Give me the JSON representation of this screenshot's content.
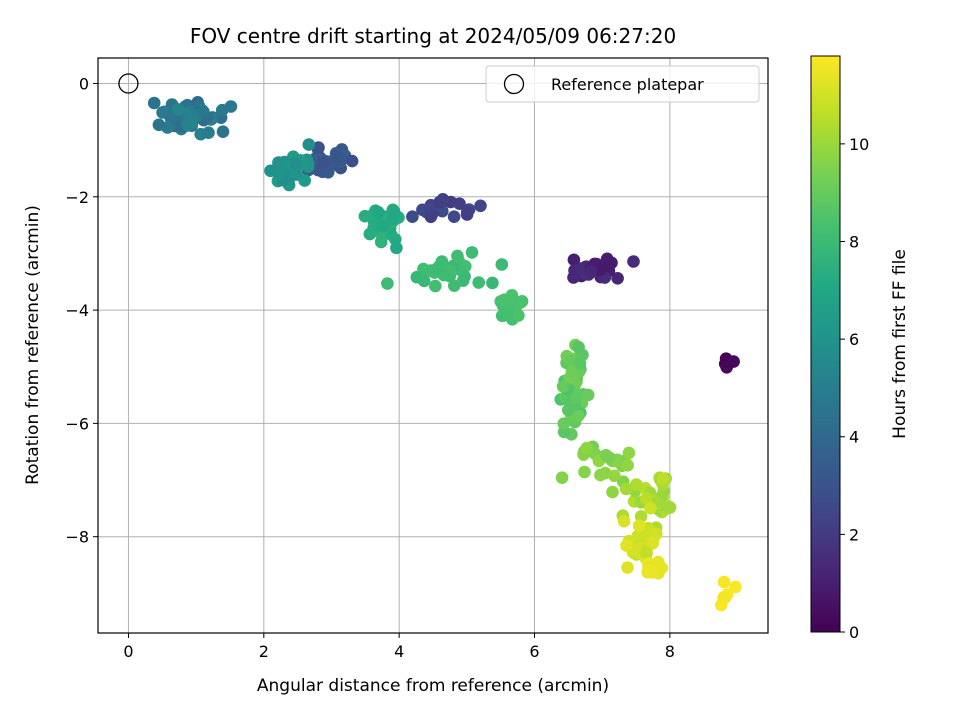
{
  "chart_data": {
    "type": "scatter",
    "title": "FOV centre drift starting at 2024/05/09 06:27:20",
    "xlabel": "Angular distance from reference (arcmin)",
    "ylabel": "Rotation from reference (arcmin)",
    "xlim": [
      -0.45,
      9.45
    ],
    "ylim": [
      -9.7,
      0.45
    ],
    "xticks": [
      0,
      2,
      4,
      6,
      8
    ],
    "yticks": [
      0,
      -2,
      -4,
      -6,
      -8
    ],
    "xtick_labels": [
      "0",
      "2",
      "4",
      "6",
      "8"
    ],
    "ytick_labels": [
      "0",
      "−2",
      "−4",
      "−6",
      "−8"
    ],
    "grid": true,
    "legend": {
      "position": "top-right",
      "label": "Reference platepar"
    },
    "reference_point": {
      "x": 0,
      "y": 0
    },
    "colorbar": {
      "label": "Hours from first FF file",
      "range": [
        0,
        11.8
      ],
      "ticks": [
        0,
        2,
        4,
        6,
        8,
        10
      ],
      "tick_labels": [
        "0",
        "2",
        "4",
        "6",
        "8",
        "10"
      ],
      "colormap": "viridis"
    },
    "clusters": [
      {
        "name": "c0",
        "x": 8.85,
        "y": -4.95,
        "sx": 0.08,
        "sy": 0.1,
        "n": 5,
        "h0": 0.0,
        "h1": 0.3
      },
      {
        "name": "c1",
        "x": 6.85,
        "y": -3.25,
        "sx": 0.45,
        "sy": 0.25,
        "n": 22,
        "h0": 0.8,
        "h1": 1.6
      },
      {
        "name": "c2",
        "x": 4.7,
        "y": -2.2,
        "sx": 0.4,
        "sy": 0.2,
        "n": 18,
        "h0": 2.0,
        "h1": 2.8
      },
      {
        "name": "c3",
        "x": 2.95,
        "y": -1.35,
        "sx": 0.35,
        "sy": 0.25,
        "n": 24,
        "h0": 2.9,
        "h1": 3.6
      },
      {
        "name": "c4",
        "x": 0.9,
        "y": -0.55,
        "sx": 0.4,
        "sy": 0.25,
        "n": 55,
        "h0": 4.0,
        "h1": 5.3
      },
      {
        "name": "c5",
        "x": 2.4,
        "y": -1.5,
        "sx": 0.3,
        "sy": 0.3,
        "n": 35,
        "h0": 5.8,
        "h1": 6.5
      },
      {
        "name": "c6",
        "x": 3.8,
        "y": -2.45,
        "sx": 0.25,
        "sy": 0.25,
        "n": 30,
        "h0": 7.0,
        "h1": 7.6
      },
      {
        "name": "c7",
        "x": 4.8,
        "y": -3.3,
        "sx": 0.5,
        "sy": 0.3,
        "n": 30,
        "h0": 7.8,
        "h1": 8.3
      },
      {
        "name": "c8",
        "x": 5.6,
        "y": -4.0,
        "sx": 0.2,
        "sy": 0.25,
        "n": 20,
        "h0": 8.2,
        "h1": 8.5
      },
      {
        "name": "c9",
        "x": 6.55,
        "y": -5.4,
        "sx": 0.15,
        "sy": 0.65,
        "n": 60,
        "h0": 8.5,
        "h1": 9.3
      },
      {
        "name": "c10",
        "x": 7.1,
        "y": -6.7,
        "sx": 0.35,
        "sy": 0.35,
        "n": 25,
        "h0": 9.3,
        "h1": 9.9
      },
      {
        "name": "c11",
        "x": 7.7,
        "y": -7.3,
        "sx": 0.3,
        "sy": 0.4,
        "n": 35,
        "h0": 9.9,
        "h1": 10.6
      },
      {
        "name": "c12",
        "x": 7.6,
        "y": -8.1,
        "sx": 0.2,
        "sy": 0.35,
        "n": 40,
        "h0": 10.6,
        "h1": 11.3
      },
      {
        "name": "c13",
        "x": 7.75,
        "y": -8.6,
        "sx": 0.2,
        "sy": 0.12,
        "n": 12,
        "h0": 11.3,
        "h1": 11.5
      },
      {
        "name": "c14",
        "x": 8.85,
        "y": -9.05,
        "sx": 0.12,
        "sy": 0.2,
        "n": 6,
        "h0": 11.5,
        "h1": 11.8
      }
    ]
  }
}
